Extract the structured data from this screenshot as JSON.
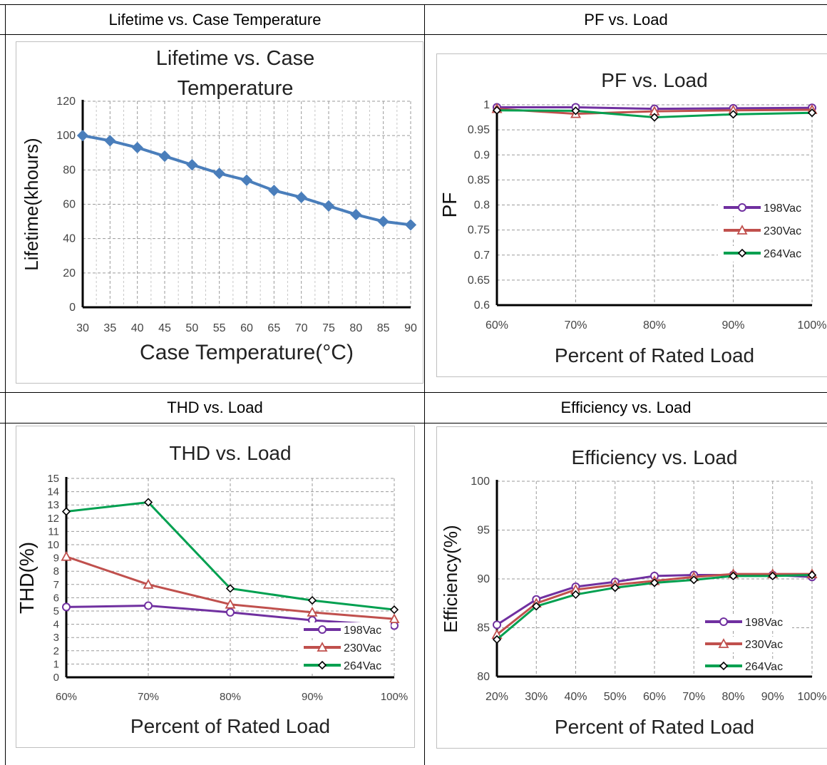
{
  "headers": {
    "lifetime": "Lifetime vs. Case Temperature",
    "pf": "PF vs. Load",
    "thd": "THD vs. Load",
    "efficiency": "Efficiency vs. Load"
  },
  "chart_data": [
    {
      "id": "lifetime",
      "type": "line",
      "title_lines": [
        "Lifetime vs. Case",
        "Temperature"
      ],
      "xlabel": "Case Temperature(°C)",
      "ylabel": "Lifetime(khours)",
      "x": [
        30,
        35,
        40,
        45,
        50,
        55,
        60,
        65,
        70,
        75,
        80,
        85,
        90
      ],
      "x_ticks": [
        "30",
        "35",
        "40",
        "45",
        "50",
        "55",
        "60",
        "65",
        "70",
        "75",
        "80",
        "85",
        "90"
      ],
      "y_ticks": [
        "0",
        "20",
        "40",
        "60",
        "80",
        "100",
        "120"
      ],
      "ylim": [
        0,
        120
      ],
      "grid": true,
      "series": [
        {
          "values": [
            100,
            97,
            93,
            88,
            83,
            78,
            74,
            68,
            64,
            59,
            54,
            50,
            48
          ],
          "color": "#4a7ebb",
          "marker": "diamond-filled"
        }
      ]
    },
    {
      "id": "pf",
      "type": "line",
      "title": "PF vs. Load",
      "xlabel": "Percent of Rated Load",
      "ylabel": "PF",
      "categories": [
        "60%",
        "70%",
        "80%",
        "90%",
        "100%"
      ],
      "y_ticks": [
        "0.6",
        "0.65",
        "0.7",
        "0.75",
        "0.8",
        "0.85",
        "0.9",
        "0.95",
        "1"
      ],
      "ylim": [
        0.6,
        1.0
      ],
      "grid": true,
      "legend": "right-middle",
      "series": [
        {
          "name": "198Vac",
          "values": [
            0.995,
            0.995,
            0.992,
            0.993,
            0.994
          ],
          "color": "#7030a0",
          "marker": "circle"
        },
        {
          "name": "230Vac",
          "values": [
            0.992,
            0.982,
            0.987,
            0.989,
            0.99
          ],
          "color": "#c0504d",
          "marker": "triangle"
        },
        {
          "name": "264Vac",
          "values": [
            0.989,
            0.988,
            0.975,
            0.981,
            0.984
          ],
          "color": "#00a050",
          "marker": "diamond"
        }
      ]
    },
    {
      "id": "thd",
      "type": "line",
      "title": "THD vs. Load",
      "xlabel": "Percent of Rated Load",
      "ylabel": "THD(%)",
      "categories": [
        "60%",
        "70%",
        "80%",
        "90%",
        "100%"
      ],
      "y_ticks": [
        "0",
        "1",
        "2",
        "3",
        "4",
        "5",
        "6",
        "7",
        "8",
        "9",
        "10",
        "11",
        "12",
        "13",
        "14",
        "15"
      ],
      "ylim": [
        0,
        15
      ],
      "grid": true,
      "legend": "bottom-right",
      "series": [
        {
          "name": "198Vac",
          "values": [
            5.3,
            5.4,
            4.9,
            4.3,
            3.9
          ],
          "color": "#7030a0",
          "marker": "circle"
        },
        {
          "name": "230Vac",
          "values": [
            9.1,
            7.0,
            5.5,
            4.9,
            4.4
          ],
          "color": "#c0504d",
          "marker": "triangle"
        },
        {
          "name": "264Vac",
          "values": [
            12.5,
            13.2,
            6.7,
            5.8,
            5.1
          ],
          "color": "#00a050",
          "marker": "diamond"
        }
      ]
    },
    {
      "id": "efficiency",
      "type": "line",
      "title": "Efficiency vs. Load",
      "xlabel": "Percent of Rated Load",
      "ylabel": "Efficiency(%)",
      "categories": [
        "20%",
        "30%",
        "40%",
        "50%",
        "60%",
        "70%",
        "80%",
        "90%",
        "100%"
      ],
      "y_ticks": [
        "80",
        "85",
        "90",
        "95",
        "100"
      ],
      "ylim": [
        80,
        100
      ],
      "grid": true,
      "legend": "bottom-right",
      "series": [
        {
          "name": "198Vac",
          "values": [
            85.3,
            87.9,
            89.2,
            89.7,
            90.3,
            90.4,
            90.4,
            90.4,
            90.2
          ],
          "color": "#7030a0",
          "marker": "circle"
        },
        {
          "name": "230Vac",
          "values": [
            84.3,
            87.5,
            88.9,
            89.4,
            89.8,
            90.2,
            90.5,
            90.5,
            90.5
          ],
          "color": "#c0504d",
          "marker": "triangle"
        },
        {
          "name": "264Vac",
          "values": [
            83.8,
            87.2,
            88.4,
            89.1,
            89.6,
            89.9,
            90.3,
            90.3,
            90.4
          ],
          "color": "#00a050",
          "marker": "diamond"
        }
      ]
    }
  ]
}
